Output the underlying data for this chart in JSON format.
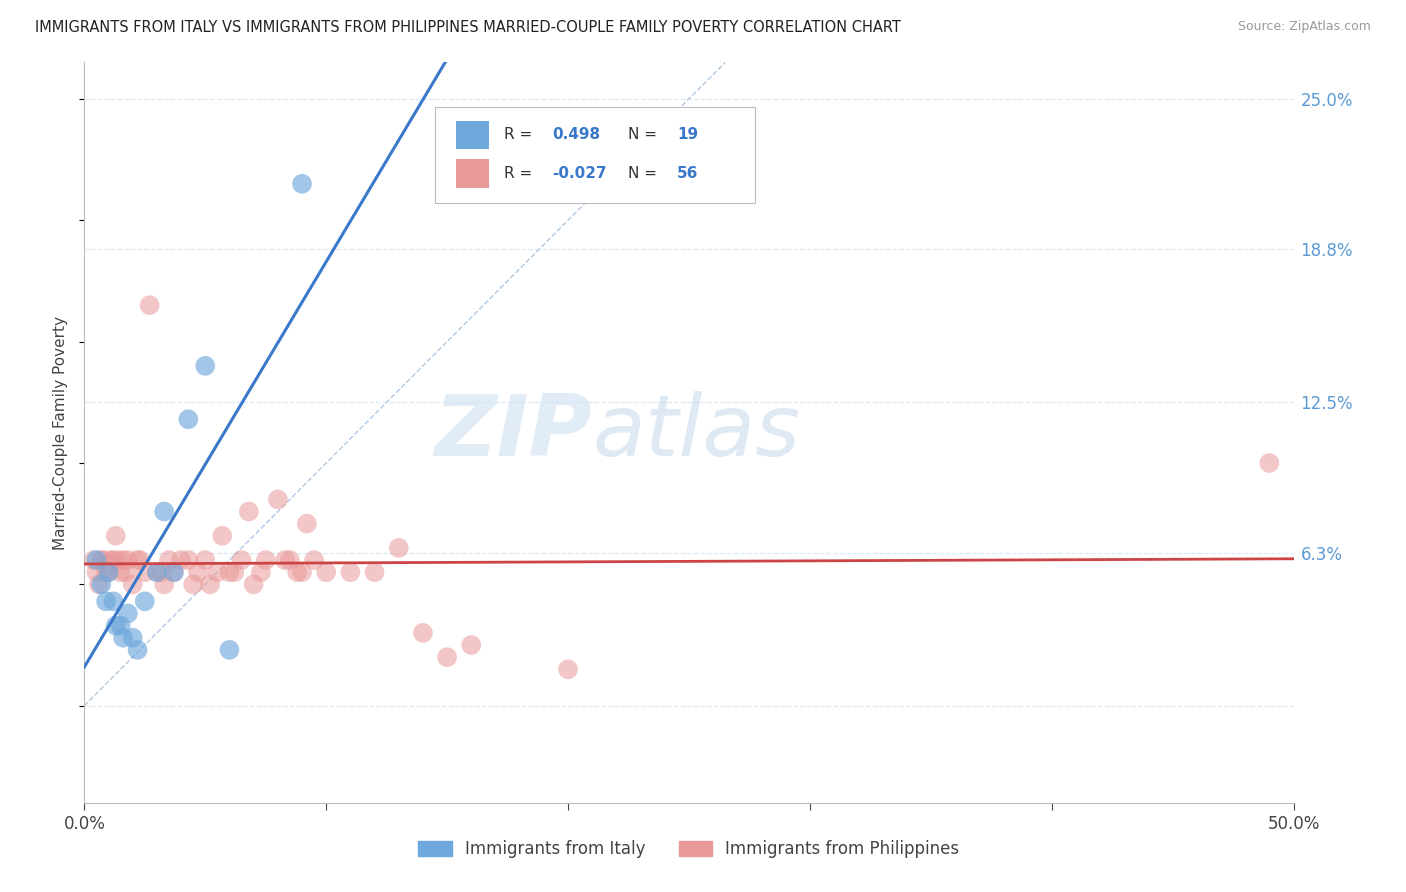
{
  "title": "IMMIGRANTS FROM ITALY VS IMMIGRANTS FROM PHILIPPINES MARRIED-COUPLE FAMILY POVERTY CORRELATION CHART",
  "source": "Source: ZipAtlas.com",
  "ylabel": "Married-Couple Family Poverty",
  "xlim": [
    0.0,
    0.5
  ],
  "ylim": [
    -0.04,
    0.265
  ],
  "ytick_positions": [
    0.0,
    0.063,
    0.125,
    0.188,
    0.25
  ],
  "ytick_labels": [
    "",
    "6.3%",
    "12.5%",
    "18.8%",
    "25.0%"
  ],
  "italy_color": "#6fa8dc",
  "philippines_color": "#ea9999",
  "italy_R": 0.498,
  "italy_N": 19,
  "philippines_R": -0.027,
  "philippines_N": 56,
  "italy_line_color": "#3a78c9",
  "philippines_line_color": "#cc4444",
  "diagonal_color": "#b0c8e0",
  "watermark_zip": "ZIP",
  "watermark_atlas": "atlas",
  "grid_color": "#daeaf5",
  "italy_scatter": [
    [
      0.005,
      0.06
    ],
    [
      0.007,
      0.05
    ],
    [
      0.009,
      0.043
    ],
    [
      0.01,
      0.055
    ],
    [
      0.012,
      0.043
    ],
    [
      0.013,
      0.033
    ],
    [
      0.015,
      0.033
    ],
    [
      0.016,
      0.028
    ],
    [
      0.018,
      0.038
    ],
    [
      0.02,
      0.028
    ],
    [
      0.022,
      0.023
    ],
    [
      0.025,
      0.043
    ],
    [
      0.03,
      0.055
    ],
    [
      0.033,
      0.08
    ],
    [
      0.037,
      0.055
    ],
    [
      0.043,
      0.118
    ],
    [
      0.05,
      0.14
    ],
    [
      0.06,
      0.023
    ],
    [
      0.09,
      0.215
    ]
  ],
  "philippines_scatter": [
    [
      0.004,
      0.06
    ],
    [
      0.005,
      0.055
    ],
    [
      0.006,
      0.05
    ],
    [
      0.007,
      0.06
    ],
    [
      0.008,
      0.06
    ],
    [
      0.009,
      0.055
    ],
    [
      0.01,
      0.055
    ],
    [
      0.011,
      0.06
    ],
    [
      0.012,
      0.06
    ],
    [
      0.013,
      0.07
    ],
    [
      0.014,
      0.06
    ],
    [
      0.015,
      0.055
    ],
    [
      0.016,
      0.06
    ],
    [
      0.017,
      0.055
    ],
    [
      0.018,
      0.06
    ],
    [
      0.02,
      0.05
    ],
    [
      0.022,
      0.06
    ],
    [
      0.023,
      0.06
    ],
    [
      0.025,
      0.055
    ],
    [
      0.027,
      0.165
    ],
    [
      0.03,
      0.055
    ],
    [
      0.032,
      0.055
    ],
    [
      0.033,
      0.05
    ],
    [
      0.035,
      0.06
    ],
    [
      0.037,
      0.055
    ],
    [
      0.04,
      0.06
    ],
    [
      0.043,
      0.06
    ],
    [
      0.045,
      0.05
    ],
    [
      0.047,
      0.055
    ],
    [
      0.05,
      0.06
    ],
    [
      0.052,
      0.05
    ],
    [
      0.055,
      0.055
    ],
    [
      0.057,
      0.07
    ],
    [
      0.06,
      0.055
    ],
    [
      0.062,
      0.055
    ],
    [
      0.065,
      0.06
    ],
    [
      0.068,
      0.08
    ],
    [
      0.07,
      0.05
    ],
    [
      0.073,
      0.055
    ],
    [
      0.075,
      0.06
    ],
    [
      0.08,
      0.085
    ],
    [
      0.083,
      0.06
    ],
    [
      0.085,
      0.06
    ],
    [
      0.088,
      0.055
    ],
    [
      0.09,
      0.055
    ],
    [
      0.092,
      0.075
    ],
    [
      0.095,
      0.06
    ],
    [
      0.1,
      0.055
    ],
    [
      0.11,
      0.055
    ],
    [
      0.12,
      0.055
    ],
    [
      0.13,
      0.065
    ],
    [
      0.14,
      0.03
    ],
    [
      0.15,
      0.02
    ],
    [
      0.16,
      0.025
    ],
    [
      0.2,
      0.015
    ],
    [
      0.49,
      0.1
    ]
  ]
}
